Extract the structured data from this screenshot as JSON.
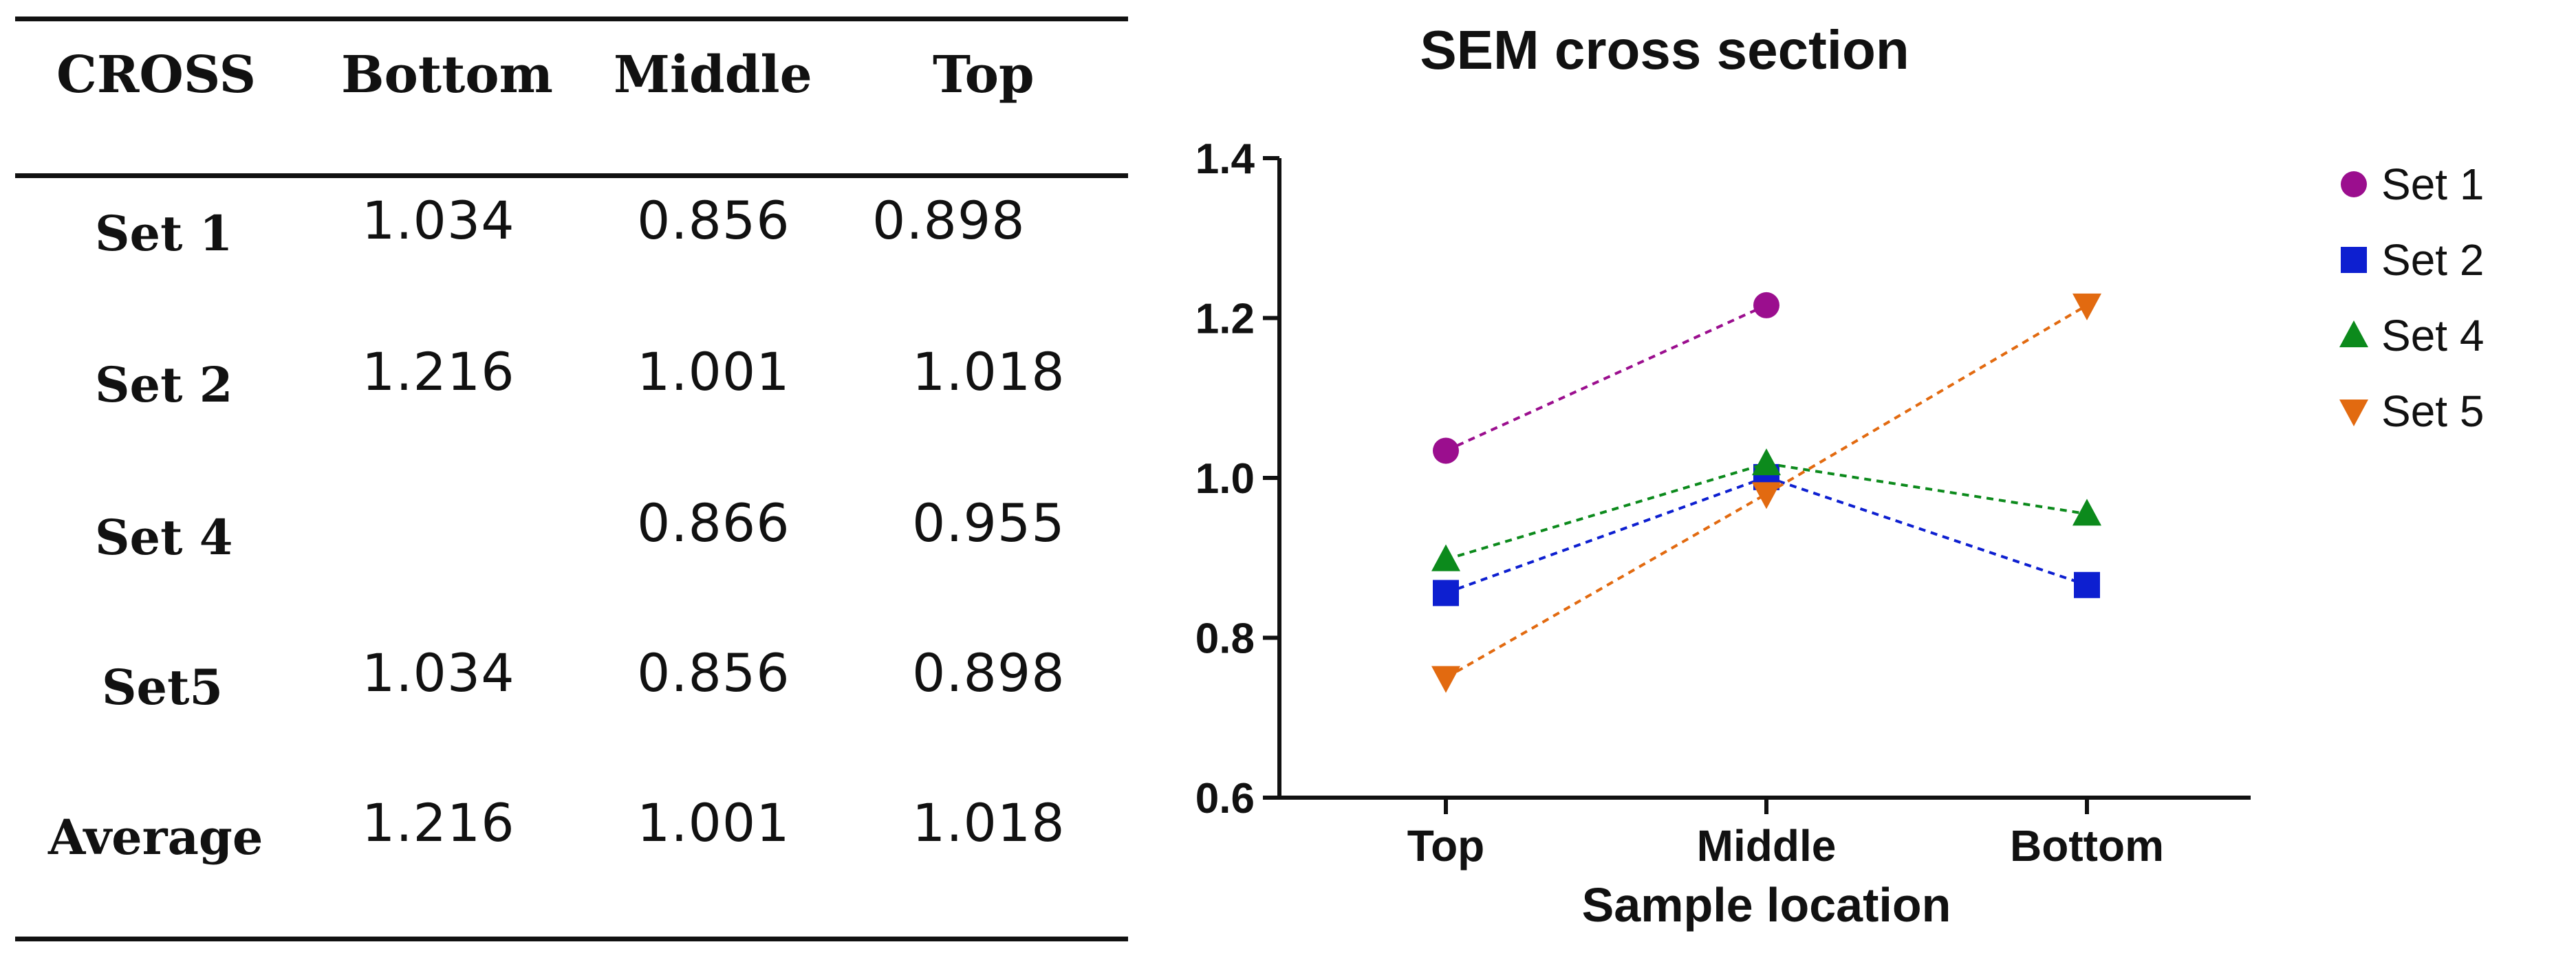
{
  "table": {
    "columns": [
      "CROSS",
      "Bottom",
      "Middle",
      "Top"
    ],
    "rows": [
      {
        "label": "Set 1",
        "bottom": "1.034",
        "middle": "0.856",
        "top": "0.898"
      },
      {
        "label": "Set 2",
        "bottom": "1.216",
        "middle": "1.001",
        "top": "1.018"
      },
      {
        "label": "Set 4",
        "bottom": "",
        "middle": "0.866",
        "top": "0.955"
      },
      {
        "label": "Set5",
        "bottom": "1.034",
        "middle": "0.856",
        "top": "0.898"
      },
      {
        "label": "Average",
        "bottom": "1.216",
        "middle": "1.001",
        "top": "1.018"
      }
    ]
  },
  "chart_data": {
    "type": "line",
    "title": "SEM cross section",
    "xlabel": "Sample location",
    "ylabel": "",
    "categories": [
      "Top",
      "Middle",
      "Bottom"
    ],
    "ylim": [
      0.6,
      1.4
    ],
    "yticks": [
      "0.6",
      "0.8",
      "1.0",
      "1.2",
      "1.4"
    ],
    "legend_position": "right",
    "series": [
      {
        "name": "Set 1",
        "values": [
          1.034,
          1.216,
          null
        ],
        "color": "#9b0e8e",
        "marker": "circle"
      },
      {
        "name": "Set 2",
        "values": [
          0.856,
          1.001,
          0.866
        ],
        "color": "#0d1fd0",
        "marker": "square"
      },
      {
        "name": "Set 4",
        "values": [
          0.898,
          1.018,
          0.955
        ],
        "color": "#0c8a1c",
        "marker": "triangle-up"
      },
      {
        "name": "Set 5",
        "values": [
          0.75,
          0.98,
          1.216
        ],
        "color": "#e26a10",
        "marker": "triangle-down"
      }
    ]
  }
}
